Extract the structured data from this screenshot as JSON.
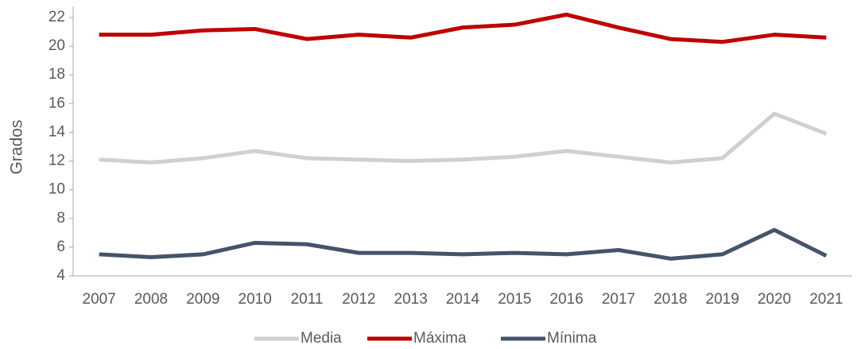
{
  "chart_data": {
    "type": "line",
    "y_label": "Grados",
    "categories": [
      "2007",
      "2008",
      "2009",
      "2010",
      "2011",
      "2012",
      "2013",
      "2014",
      "2015",
      "2016",
      "2017",
      "2018",
      "2019",
      "2020",
      "2021"
    ],
    "series": [
      {
        "name": "Media",
        "color": "#d0d0d0",
        "values": [
          12.1,
          11.9,
          12.2,
          12.7,
          12.2,
          12.1,
          12.0,
          12.1,
          12.3,
          12.7,
          12.3,
          11.9,
          12.2,
          15.3,
          13.9
        ]
      },
      {
        "name": "Máxima",
        "color": "#c00000",
        "values": [
          20.8,
          20.8,
          21.1,
          21.2,
          20.5,
          20.8,
          20.6,
          21.3,
          21.5,
          22.2,
          21.3,
          20.5,
          20.3,
          20.8,
          20.6
        ]
      },
      {
        "name": "Mínima",
        "color": "#44546a",
        "values": [
          5.5,
          5.3,
          5.5,
          6.3,
          6.2,
          5.6,
          5.6,
          5.5,
          5.6,
          5.5,
          5.8,
          5.2,
          5.5,
          7.2,
          5.4
        ]
      }
    ],
    "ylim": [
      4,
      22
    ],
    "yticks": [
      4,
      6,
      8,
      10,
      12,
      14,
      16,
      18,
      20,
      22
    ],
    "grid": false,
    "legend": "bottom"
  }
}
